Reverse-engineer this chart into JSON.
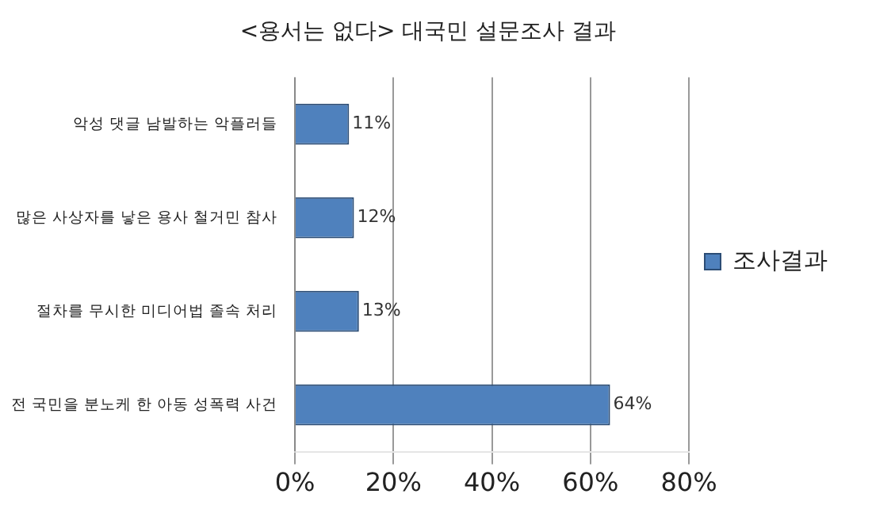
{
  "chart_data": {
    "type": "bar",
    "orientation": "horizontal",
    "title": "<용서는 없다> 대국민 설문조사 결과",
    "categories": [
      "악성 댓글 남발하는 악플러들",
      "많은 사상자를 낳은 용사 철거민 참사",
      "절차를 무시한 미디어법 졸속 처리",
      "전 국민을 분노케 한 아동 성폭력 사건"
    ],
    "series": [
      {
        "name": "조사결과",
        "color": "#4f81bd",
        "values": [
          11,
          12,
          13,
          64
        ],
        "value_labels": [
          "11%",
          "12%",
          "13%",
          "64%"
        ]
      }
    ],
    "xlim": [
      0,
      80
    ],
    "xticks": [
      {
        "value": 0,
        "label": "0%"
      },
      {
        "value": 20,
        "label": "20%"
      },
      {
        "value": 40,
        "label": "40%"
      },
      {
        "value": 60,
        "label": "60%"
      },
      {
        "value": 80,
        "label": "80%"
      }
    ],
    "grid": "x",
    "legend": "right"
  }
}
